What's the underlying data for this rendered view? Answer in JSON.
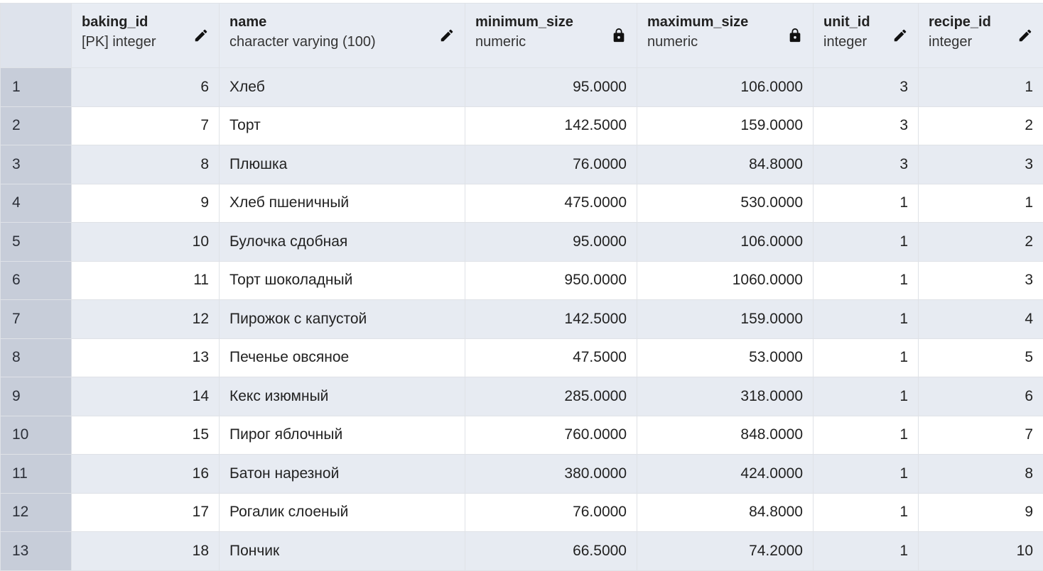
{
  "columns": [
    {
      "name": "baking_id",
      "type": "[PK] integer",
      "icon": "pencil-icon"
    },
    {
      "name": "name",
      "type": "character varying (100)",
      "icon": "pencil-icon"
    },
    {
      "name": "minimum_size",
      "type": "numeric",
      "icon": "lock-icon"
    },
    {
      "name": "maximum_size",
      "type": "numeric",
      "icon": "lock-icon"
    },
    {
      "name": "unit_id",
      "type": "integer",
      "icon": "pencil-icon"
    },
    {
      "name": "recipe_id",
      "type": "integer",
      "icon": "pencil-icon"
    }
  ],
  "rows": [
    {
      "num": "1",
      "cells": [
        "6",
        "Хлеб",
        "95.0000",
        "106.0000",
        "3",
        "1"
      ]
    },
    {
      "num": "2",
      "cells": [
        "7",
        "Торт",
        "142.5000",
        "159.0000",
        "3",
        "2"
      ]
    },
    {
      "num": "3",
      "cells": [
        "8",
        "Плюшка",
        "76.0000",
        "84.8000",
        "3",
        "3"
      ]
    },
    {
      "num": "4",
      "cells": [
        "9",
        "Хлеб пшеничный",
        "475.0000",
        "530.0000",
        "1",
        "1"
      ]
    },
    {
      "num": "5",
      "cells": [
        "10",
        "Булочка сдобная",
        "95.0000",
        "106.0000",
        "1",
        "2"
      ]
    },
    {
      "num": "6",
      "cells": [
        "11",
        "Торт шоколадный",
        "950.0000",
        "1060.0000",
        "1",
        "3"
      ]
    },
    {
      "num": "7",
      "cells": [
        "12",
        "Пирожок с капустой",
        "142.5000",
        "159.0000",
        "1",
        "4"
      ]
    },
    {
      "num": "8",
      "cells": [
        "13",
        "Печенье овсяное",
        "47.5000",
        "53.0000",
        "1",
        "5"
      ]
    },
    {
      "num": "9",
      "cells": [
        "14",
        "Кекс изюмный",
        "285.0000",
        "318.0000",
        "1",
        "6"
      ]
    },
    {
      "num": "10",
      "cells": [
        "15",
        "Пирог яблочный",
        "760.0000",
        "848.0000",
        "1",
        "7"
      ]
    },
    {
      "num": "11",
      "cells": [
        "16",
        "Батон нарезной",
        "380.0000",
        "424.0000",
        "1",
        "8"
      ]
    },
    {
      "num": "12",
      "cells": [
        "17",
        "Рогалик слоеный",
        "76.0000",
        "84.8000",
        "1",
        "9"
      ]
    },
    {
      "num": "13",
      "cells": [
        "18",
        "Пончик",
        "66.5000",
        "74.2000",
        "1",
        "10"
      ]
    }
  ]
}
